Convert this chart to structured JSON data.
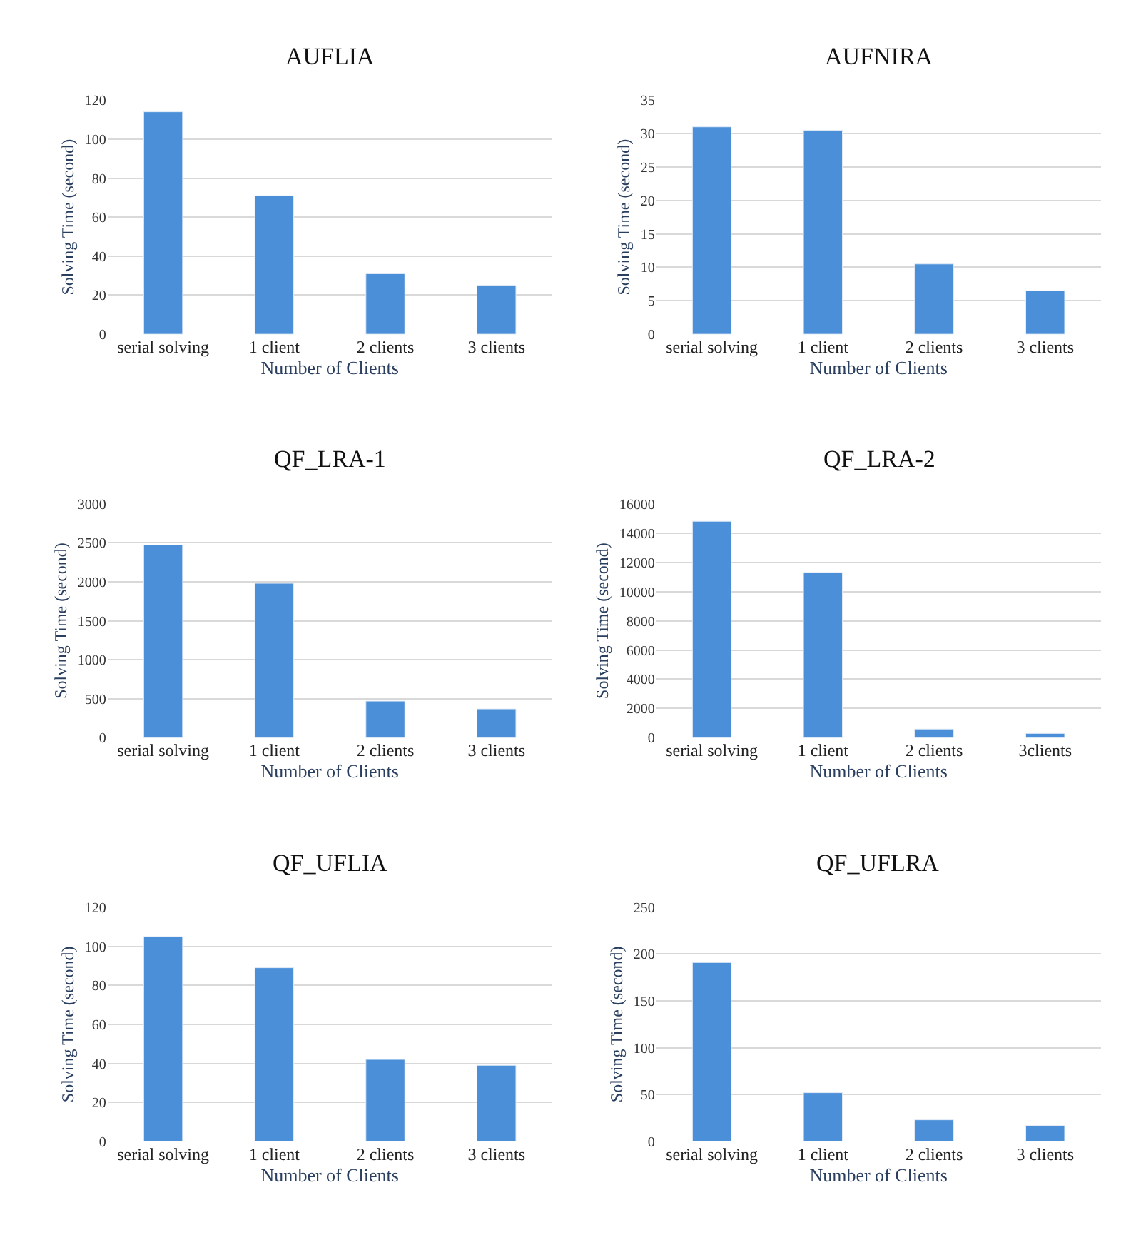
{
  "chart_data": [
    {
      "type": "bar",
      "title": "AUFLIA",
      "xlabel": "Number of Clients",
      "ylabel": "Solving Time (second)",
      "categories": [
        "serial solving",
        "1 client",
        "2 clients",
        "3 clients"
      ],
      "values": [
        114,
        71,
        31,
        25
      ],
      "color": "#4a8fd8",
      "ylim": [
        0,
        120
      ],
      "yticks": [
        0,
        20,
        40,
        60,
        80,
        100,
        120
      ],
      "grid": "y"
    },
    {
      "type": "bar",
      "title": "AUFNIRA",
      "xlabel": "Number of Clients",
      "ylabel": "Solving Time (second)",
      "categories": [
        "serial solving",
        "1 client",
        "2 clients",
        "3 clients"
      ],
      "values": [
        31,
        30.5,
        10.5,
        6.5
      ],
      "color": "#4a8fd8",
      "ylim": [
        0,
        35
      ],
      "yticks": [
        0,
        5,
        10,
        15,
        20,
        25,
        30,
        35
      ],
      "grid": "y"
    },
    {
      "type": "bar",
      "title": "QF_LRA-1",
      "xlabel": "Number of Clients",
      "ylabel": "Solving Time (second)",
      "categories": [
        "serial solving",
        "1 client",
        "2 clients",
        "3 clients"
      ],
      "values": [
        2470,
        1980,
        470,
        370
      ],
      "color": "#4a8fd8",
      "ylim": [
        0,
        3000
      ],
      "yticks": [
        0,
        500,
        1000,
        1500,
        2000,
        2500,
        3000
      ],
      "grid": "y"
    },
    {
      "type": "bar",
      "title": "QF_LRA-2",
      "xlabel": "Number of Clients",
      "ylabel": "Solving Time (second)",
      "categories": [
        "serial solving",
        "1 client",
        "2 clients",
        "3clients"
      ],
      "values": [
        14800,
        11300,
        600,
        300
      ],
      "color": "#4a8fd8",
      "ylim": [
        0,
        16000
      ],
      "yticks": [
        0,
        2000,
        4000,
        6000,
        8000,
        10000,
        12000,
        14000,
        16000
      ],
      "grid": "y"
    },
    {
      "type": "bar",
      "title": "QF_UFLIA",
      "xlabel": "Number of Clients",
      "ylabel": "Solving Time (second)",
      "categories": [
        "serial solving",
        "1 client",
        "2 clients",
        "3 clients"
      ],
      "values": [
        105,
        89,
        42,
        39
      ],
      "color": "#4a8fd8",
      "ylim": [
        0,
        120
      ],
      "yticks": [
        0,
        20,
        40,
        60,
        80,
        100,
        120
      ],
      "grid": "y"
    },
    {
      "type": "bar",
      "title": "QF_UFLRA",
      "xlabel": "Number of Clients",
      "ylabel": "Solving Time (second)",
      "categories": [
        "serial solving",
        "1 client",
        "2 clients",
        "3 clients"
      ],
      "values": [
        191,
        52,
        23,
        17
      ],
      "color": "#4a8fd8",
      "ylim": [
        0,
        250
      ],
      "yticks": [
        0,
        50,
        100,
        150,
        200,
        250
      ],
      "grid": "y"
    }
  ]
}
